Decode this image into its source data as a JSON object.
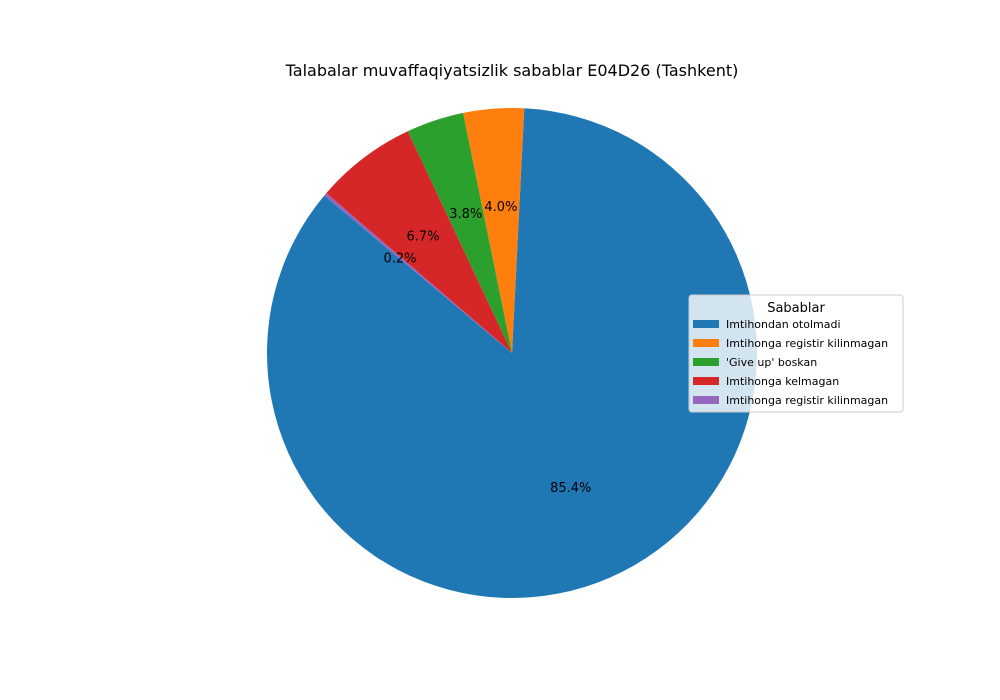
{
  "chart_data": {
    "type": "pie",
    "title": "Talabalar muvaffaqiyatsizlik sabablar E04D26 (Tashkent)",
    "legend_title": "Sabablar",
    "legend_placement": "center-right",
    "start_angle_deg": 140,
    "direction": "counterclockwise",
    "slices": [
      {
        "label": "Imtihondan otolmadi",
        "value": 85.4,
        "pct_label": "85.4%",
        "color": "#1f77b4"
      },
      {
        "label": "Imtihonga registir kilinmagan",
        "value": 4.0,
        "pct_label": "4.0%",
        "color": "#ff7f0e"
      },
      {
        "label": "'Give up' boskan",
        "value": 3.8,
        "pct_label": "3.8%",
        "color": "#2ca02c"
      },
      {
        "label": "Imtihonga kelmagan",
        "value": 6.7,
        "pct_label": "6.7%",
        "color": "#d62728"
      },
      {
        "label": "Imtihonga registir kilinmagan",
        "value": 0.2,
        "pct_label": "0.2%",
        "color": "#9467bd"
      }
    ]
  }
}
